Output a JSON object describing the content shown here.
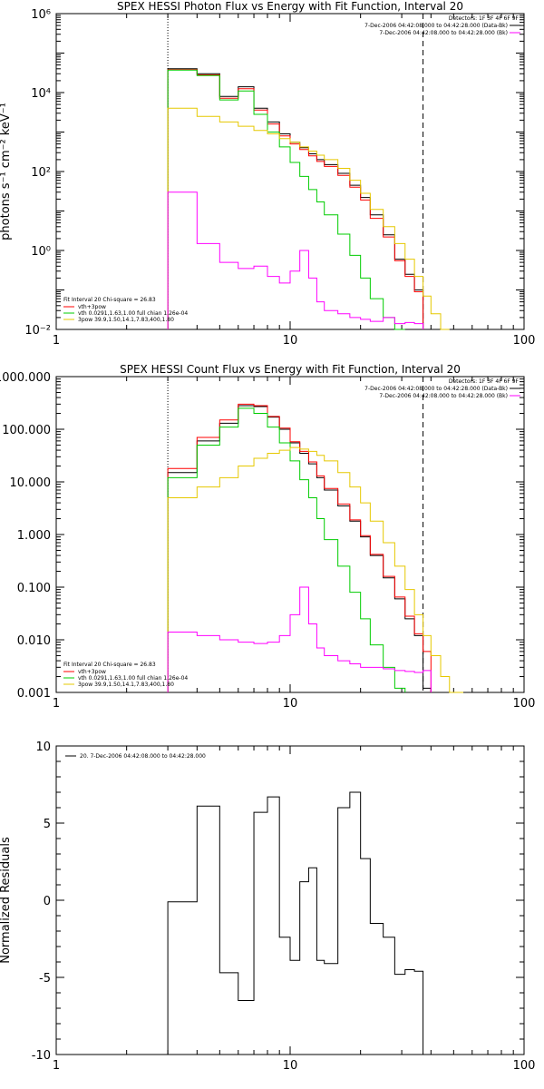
{
  "chart_data": [
    {
      "type": "line",
      "title": "SPEX HESSI Photon Flux vs Energy with Fit Function, Interval 20",
      "ylabel": "photons s⁻¹ cm⁻² keV⁻¹",
      "xlabel": "",
      "x_scale": "log",
      "y_scale": "log",
      "xlim": [
        1,
        100
      ],
      "ylim": [
        0.01,
        1000000
      ],
      "x_tick_labels": [
        "1",
        "10",
        "100"
      ],
      "y_tick_labels": [
        "10⁻²",
        "10⁰",
        "10²",
        "10⁴",
        "10⁶"
      ],
      "vlines": [
        {
          "x": 3,
          "style": "dotted"
        },
        {
          "x": 37,
          "style": "dashed"
        }
      ],
      "legend_top_right": [
        "Detectors: 1F 3F 4F 6F 9F",
        "7-Dec-2006 04:42:08.000 to 04:42:28.000 (Data-Bk)",
        "7-Dec-2006 04:42:08.000 to 04:42:28.000 (Bk)"
      ],
      "legend_bottom_left": [
        "Fit Interval 20   Chi-square = 26.83",
        "vth+3pow",
        "vth 0.0291,1.63,1.00  full chian 1.26e-04",
        "3pow 39.9,1.50,14.1,7.83,400,1.80"
      ],
      "edges": [
        3,
        4,
        5,
        6,
        7,
        8,
        9,
        10,
        11,
        12,
        13,
        14,
        16,
        18,
        20,
        22,
        25,
        28,
        31,
        34,
        37,
        40,
        44,
        48
      ],
      "series": [
        {
          "name": "Data-Bk",
          "color": "#000000",
          "values": [
            40000,
            30000,
            8000,
            14000,
            4000,
            1800,
            900,
            550,
            400,
            280,
            200,
            150,
            90,
            45,
            22,
            8,
            2.5,
            0.6,
            0.25,
            0.1,
            null,
            null,
            null
          ]
        },
        {
          "name": "vth+3pow",
          "color": "#ff0000",
          "values": [
            38000,
            28000,
            7200,
            12500,
            3600,
            1600,
            800,
            500,
            360,
            250,
            180,
            135,
            80,
            40,
            19,
            6.5,
            2.2,
            0.55,
            0.22,
            0.09,
            null,
            null,
            null
          ]
        },
        {
          "name": "vth",
          "color": "#00cc00",
          "values": [
            37000,
            27000,
            6500,
            11000,
            2800,
            1000,
            420,
            170,
            75,
            35,
            17,
            8,
            2.6,
            0.75,
            0.2,
            0.06,
            0.02,
            0.01,
            null,
            null,
            null,
            null,
            null
          ]
        },
        {
          "name": "3pow",
          "color": "#e6c800",
          "values": [
            4000,
            2500,
            1800,
            1400,
            1100,
            900,
            680,
            550,
            420,
            330,
            260,
            200,
            120,
            60,
            28,
            11,
            4,
            1.5,
            0.6,
            0.22,
            0.07,
            0.025,
            0.01
          ]
        },
        {
          "name": "Bk",
          "color": "#ff00ff",
          "values": [
            30,
            1.5,
            0.5,
            0.35,
            0.4,
            0.22,
            0.15,
            0.3,
            1,
            0.2,
            0.05,
            0.03,
            0.025,
            0.02,
            0.018,
            0.016,
            0.02,
            0.014,
            0.015,
            0.014,
            null,
            null,
            null
          ]
        }
      ]
    },
    {
      "type": "line",
      "title": "SPEX HESSI Count Flux vs Energy with Fit Function, Interval 20",
      "ylabel": "",
      "xlabel": "",
      "x_scale": "log",
      "y_scale": "log",
      "xlim": [
        1,
        100
      ],
      "ylim": [
        0.001,
        1000
      ],
      "x_tick_labels": [
        "1",
        "10",
        "100"
      ],
      "y_tick_labels": [
        "0.001",
        "0.010",
        "0.100",
        "1.000",
        "10.000",
        "100.000",
        "1000.000"
      ],
      "vlines": [
        {
          "x": 3,
          "style": "dotted"
        },
        {
          "x": 37,
          "style": "dashed"
        }
      ],
      "legend_top_right": [
        "Detectors: 1F 3F 4F 6F 9F",
        "7-Dec-2006 04:42:08.000 to 04:42:28.000 (Data-Bk)",
        "7-Dec-2006 04:42:08.000 to 04:42:28.000 (Bk)"
      ],
      "legend_bottom_left": [
        "Fit Interval 20   Chi-square = 26.83",
        "vth+3pow",
        "vth 0.0291,1.63,1.00  full chian 1.26e-04",
        "3pow 39.9,1.50,14.1,7.83,400,1.80"
      ],
      "edges": [
        3,
        4,
        5,
        6,
        7,
        8,
        9,
        10,
        11,
        12,
        13,
        14,
        16,
        18,
        20,
        22,
        25,
        28,
        31,
        34,
        37,
        40,
        44,
        48,
        55
      ],
      "series": [
        {
          "name": "Data-Bk",
          "color": "#000000",
          "values": [
            15,
            60,
            130,
            280,
            270,
            170,
            100,
            55,
            35,
            22,
            12,
            7,
            3.5,
            1.8,
            0.9,
            0.4,
            0.15,
            0.06,
            0.025,
            0.012,
            0.0012,
            null,
            null,
            null
          ]
        },
        {
          "name": "vth+3pow",
          "color": "#ff0000",
          "values": [
            18,
            70,
            150,
            300,
            280,
            175,
            105,
            58,
            38,
            24,
            13,
            7.5,
            3.8,
            1.9,
            0.95,
            0.42,
            0.16,
            0.065,
            0.028,
            0.013,
            0.006,
            null,
            null,
            null
          ]
        },
        {
          "name": "vth",
          "color": "#00cc00",
          "values": [
            12,
            50,
            110,
            250,
            200,
            110,
            55,
            25,
            11,
            5,
            2,
            0.8,
            0.25,
            0.08,
            0.025,
            0.008,
            0.003,
            0.0012,
            null,
            null,
            null,
            null,
            null,
            null
          ]
        },
        {
          "name": "3pow",
          "color": "#e6c800",
          "values": [
            5,
            8,
            12,
            20,
            28,
            35,
            40,
            45,
            42,
            38,
            32,
            25,
            15,
            8,
            4,
            1.8,
            0.7,
            0.25,
            0.09,
            0.03,
            0.012,
            0.005,
            0.002,
            0.001
          ]
        },
        {
          "name": "Bk",
          "color": "#ff00ff",
          "values": [
            0.014,
            0.012,
            0.01,
            0.009,
            0.0085,
            0.009,
            0.012,
            0.03,
            0.1,
            0.02,
            0.007,
            0.005,
            0.004,
            0.0035,
            0.003,
            0.003,
            0.0028,
            0.0026,
            0.0025,
            0.0024,
            0.0026,
            null,
            null,
            null
          ]
        }
      ]
    },
    {
      "type": "line",
      "title": "",
      "ylabel": "Normalized Residuals",
      "xlabel": "",
      "x_scale": "log",
      "y_scale": "linear",
      "xlim": [
        1,
        100
      ],
      "ylim": [
        -10,
        10
      ],
      "x_tick_labels": [
        "1",
        "10",
        "100"
      ],
      "y_tick_labels": [
        "-10",
        "-5",
        "0",
        "5",
        "10"
      ],
      "legend": [
        "20.  7-Dec-2006 04:42:08.000 to 04:42:28.000"
      ],
      "edges": [
        3,
        4,
        5,
        6,
        7,
        8,
        9,
        10,
        11,
        12,
        13,
        14,
        16,
        18,
        20,
        22,
        25,
        28,
        31,
        34,
        37
      ],
      "series": [
        {
          "name": "20.  7-Dec-2006 04:42:08.000 to 04:42:28.000",
          "color": "#000000",
          "values": [
            -0.1,
            6.1,
            -4.7,
            -6.5,
            5.7,
            6.7,
            -2.4,
            -3.9,
            1.2,
            2.1,
            -3.9,
            -4.1,
            6.0,
            7.0,
            2.7,
            -1.5,
            -2.4,
            -4.8,
            -4.5,
            -4.6
          ]
        }
      ]
    }
  ]
}
